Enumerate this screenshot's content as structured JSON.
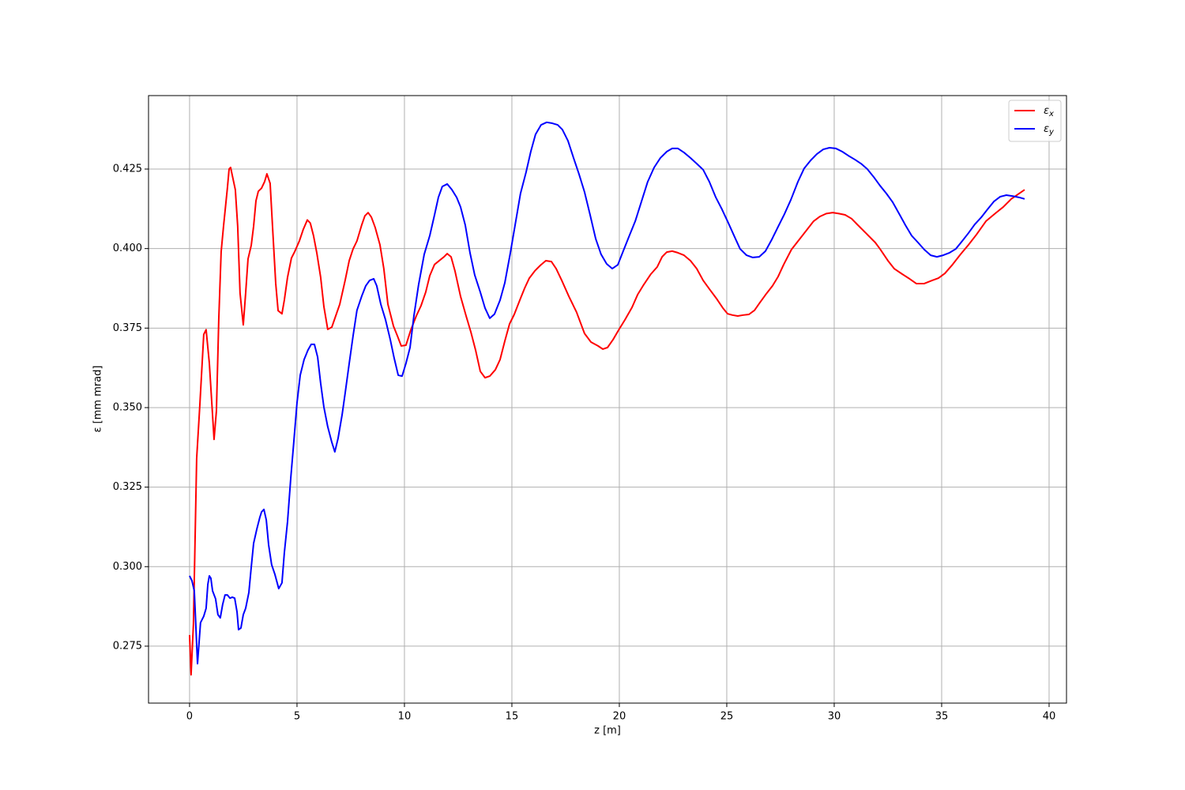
{
  "chart_data": {
    "type": "line",
    "x_label": "z [m]",
    "y_label": "ε [mm mrad]",
    "xlim": [
      -1.91,
      40.81
    ],
    "ylim": [
      0.2571,
      0.4481
    ],
    "xticks": [
      0,
      5,
      10,
      15,
      20,
      25,
      30,
      35,
      40
    ],
    "yticks": [
      0.275,
      {
        "value": 0.3,
        "label": "0.300"
      },
      0.325,
      {
        "value": 0.35,
        "label": "0.350"
      },
      0.375,
      {
        "value": 0.4,
        "label": "0.400"
      },
      0.425
    ],
    "grid": true,
    "legend": "upper right",
    "series": [
      {
        "name": "εx",
        "color": "#ff0000",
        "x": [
          0,
          0.07,
          0.18,
          0.33,
          0.48,
          0.66,
          0.77,
          0.92,
          1.14,
          1.25,
          1.36,
          1.47,
          1.58,
          1.76,
          1.84,
          1.91,
          2.02,
          2.13,
          2.24,
          2.35,
          2.5,
          2.61,
          2.72,
          2.87,
          2.98,
          3.09,
          3.2,
          3.35,
          3.49,
          3.6,
          3.75,
          3.86,
          4.01,
          4.12,
          4.3,
          4.41,
          4.56,
          4.74,
          4.89,
          5.11,
          5.29,
          5.48,
          5.62,
          5.77,
          5.92,
          6.1,
          6.25,
          6.43,
          6.62,
          6.8,
          6.99,
          7.24,
          7.43,
          7.61,
          7.79,
          8.01,
          8.16,
          8.31,
          8.46,
          8.64,
          8.86,
          9.04,
          9.23,
          9.49,
          9.67,
          9.85,
          10.07,
          10.29,
          10.55,
          10.77,
          10.99,
          11.18,
          11.4,
          11.62,
          11.84,
          11.99,
          12.17,
          12.35,
          12.61,
          12.87,
          13.09,
          13.31,
          13.53,
          13.75,
          13.97,
          14.23,
          14.45,
          14.67,
          14.89,
          15.11,
          15.37,
          15.59,
          15.81,
          16.07,
          16.32,
          16.58,
          16.84,
          17.06,
          17.32,
          17.65,
          18.01,
          18.38,
          18.68,
          19.01,
          19.23,
          19.45,
          19.71,
          19.96,
          20.26,
          20.59,
          20.85,
          21.14,
          21.47,
          21.76,
          21.99,
          22.21,
          22.46,
          22.72,
          23.01,
          23.31,
          23.6,
          23.9,
          24.19,
          24.52,
          24.82,
          25.04,
          25.26,
          25.51,
          25.77,
          26.03,
          26.29,
          26.54,
          26.84,
          27.13,
          27.39,
          27.65,
          28.01,
          28.38,
          28.75,
          29.04,
          29.34,
          29.63,
          29.93,
          30.22,
          30.51,
          30.81,
          31.1,
          31.47,
          31.91,
          32.13,
          32.5,
          32.79,
          33.16,
          33.46,
          33.82,
          34.19,
          34.56,
          34.85,
          35.15,
          35.51,
          35.88,
          36.25,
          36.62,
          37.06,
          37.5,
          37.87,
          38.24,
          38.6,
          38.86
        ],
        "values": [
          0.2785,
          0.266,
          0.282,
          0.334,
          0.351,
          0.373,
          0.3745,
          0.364,
          0.34,
          0.349,
          0.378,
          0.399,
          0.407,
          0.419,
          0.425,
          0.4255,
          0.422,
          0.4185,
          0.407,
          0.386,
          0.376,
          0.386,
          0.3967,
          0.401,
          0.407,
          0.415,
          0.418,
          0.419,
          0.421,
          0.4235,
          0.4205,
          0.407,
          0.389,
          0.3805,
          0.3795,
          0.3838,
          0.391,
          0.397,
          0.399,
          0.4024,
          0.406,
          0.409,
          0.408,
          0.404,
          0.3987,
          0.391,
          0.3818,
          0.3746,
          0.3753,
          0.3788,
          0.3825,
          0.39,
          0.3962,
          0.3999,
          0.4024,
          0.4074,
          0.4103,
          0.4113,
          0.4099,
          0.4066,
          0.4012,
          0.3937,
          0.3825,
          0.3756,
          0.3726,
          0.3694,
          0.3696,
          0.3743,
          0.3788,
          0.382,
          0.3863,
          0.3915,
          0.395,
          0.3962,
          0.3974,
          0.3984,
          0.3974,
          0.393,
          0.385,
          0.3788,
          0.3738,
          0.3681,
          0.3614,
          0.3594,
          0.3599,
          0.3619,
          0.3651,
          0.3709,
          0.3763,
          0.3793,
          0.3838,
          0.3875,
          0.3907,
          0.393,
          0.3947,
          0.3962,
          0.3959,
          0.3937,
          0.39,
          0.385,
          0.38,
          0.3733,
          0.3706,
          0.3694,
          0.3684,
          0.3689,
          0.3714,
          0.3743,
          0.3776,
          0.3815,
          0.3855,
          0.3887,
          0.392,
          0.3942,
          0.3974,
          0.3989,
          0.3992,
          0.3987,
          0.3979,
          0.3962,
          0.3937,
          0.39,
          0.3873,
          0.3843,
          0.3813,
          0.3795,
          0.3791,
          0.3788,
          0.3791,
          0.3793,
          0.3806,
          0.383,
          0.3858,
          0.3883,
          0.3912,
          0.395,
          0.3997,
          0.4029,
          0.4061,
          0.4086,
          0.4101,
          0.411,
          0.4113,
          0.411,
          0.4106,
          0.4094,
          0.4074,
          0.4049,
          0.4019,
          0.3999,
          0.3962,
          0.3937,
          0.392,
          0.3907,
          0.389,
          0.389,
          0.39,
          0.3907,
          0.3922,
          0.395,
          0.3982,
          0.4012,
          0.4044,
          0.4086,
          0.4111,
          0.4131,
          0.4156,
          0.4173,
          0.4185
        ]
      },
      {
        "name": "εy",
        "color": "#0000ff",
        "x": [
          0,
          0.11,
          0.22,
          0.37,
          0.51,
          0.66,
          0.77,
          0.85,
          0.92,
          0.99,
          1.07,
          1.21,
          1.32,
          1.43,
          1.54,
          1.65,
          1.76,
          1.88,
          1.99,
          2.1,
          2.21,
          2.28,
          2.39,
          2.5,
          2.61,
          2.76,
          2.87,
          2.98,
          3.13,
          3.27,
          3.35,
          3.46,
          3.57,
          3.68,
          3.82,
          3.97,
          4.15,
          4.3,
          4.41,
          4.56,
          4.71,
          4.85,
          5.0,
          5.15,
          5.33,
          5.51,
          5.66,
          5.81,
          5.96,
          6.1,
          6.25,
          6.43,
          6.62,
          6.76,
          6.91,
          7.1,
          7.24,
          7.43,
          7.61,
          7.79,
          8.01,
          8.2,
          8.38,
          8.57,
          8.71,
          8.9,
          9.12,
          9.34,
          9.52,
          9.71,
          9.89,
          10.07,
          10.26,
          10.44,
          10.66,
          10.92,
          11.18,
          11.4,
          11.58,
          11.76,
          11.99,
          12.21,
          12.43,
          12.61,
          12.83,
          13.05,
          13.27,
          13.53,
          13.75,
          13.97,
          14.19,
          14.45,
          14.67,
          14.93,
          15.15,
          15.4,
          15.66,
          15.88,
          16.1,
          16.36,
          16.62,
          16.88,
          17.13,
          17.35,
          17.61,
          17.87,
          18.12,
          18.38,
          18.64,
          18.9,
          19.15,
          19.41,
          19.67,
          19.93,
          20.18,
          20.44,
          20.74,
          21.03,
          21.32,
          21.62,
          21.91,
          22.21,
          22.46,
          22.72,
          23.01,
          23.31,
          23.6,
          23.9,
          24.19,
          24.49,
          24.78,
          25.07,
          25.37,
          25.62,
          25.92,
          26.21,
          26.51,
          26.8,
          27.1,
          27.39,
          27.68,
          27.98,
          28.31,
          28.6,
          28.9,
          29.19,
          29.49,
          29.78,
          30.07,
          30.37,
          30.66,
          30.96,
          31.25,
          31.54,
          31.84,
          32.13,
          32.43,
          32.72,
          33.01,
          33.31,
          33.6,
          33.9,
          34.19,
          34.49,
          34.78,
          35.07,
          35.37,
          35.66,
          35.96,
          36.25,
          36.54,
          36.84,
          37.13,
          37.43,
          37.72,
          38.01,
          38.31,
          38.6,
          38.86
        ],
        "values": [
          0.2971,
          0.2956,
          0.2924,
          0.2695,
          0.2824,
          0.2844,
          0.2869,
          0.2944,
          0.2971,
          0.2964,
          0.2924,
          0.2899,
          0.2849,
          0.2839,
          0.2881,
          0.2911,
          0.2911,
          0.2901,
          0.2904,
          0.2901,
          0.2857,
          0.2802,
          0.2807,
          0.2849,
          0.2869,
          0.2919,
          0.2998,
          0.3073,
          0.3118,
          0.3155,
          0.3172,
          0.318,
          0.3147,
          0.3068,
          0.3006,
          0.2976,
          0.2931,
          0.2949,
          0.3043,
          0.3142,
          0.3279,
          0.3391,
          0.3515,
          0.3602,
          0.3651,
          0.3681,
          0.3699,
          0.3699,
          0.3659,
          0.3577,
          0.3502,
          0.344,
          0.3391,
          0.3361,
          0.3403,
          0.3478,
          0.3545,
          0.3639,
          0.3726,
          0.3806,
          0.385,
          0.3883,
          0.39,
          0.3905,
          0.3883,
          0.3825,
          0.3776,
          0.3714,
          0.3656,
          0.3602,
          0.3599,
          0.3639,
          0.3689,
          0.3788,
          0.3887,
          0.3982,
          0.4041,
          0.4106,
          0.4161,
          0.4195,
          0.4203,
          0.4185,
          0.4161,
          0.4131,
          0.4074,
          0.3987,
          0.3917,
          0.3863,
          0.3813,
          0.3781,
          0.3794,
          0.3838,
          0.3892,
          0.3987,
          0.4074,
          0.4173,
          0.424,
          0.4305,
          0.4359,
          0.4389,
          0.4397,
          0.4394,
          0.4389,
          0.4374,
          0.4339,
          0.4285,
          0.4235,
          0.4178,
          0.4106,
          0.4031,
          0.3982,
          0.3952,
          0.3937,
          0.3949,
          0.3992,
          0.4036,
          0.4086,
          0.4148,
          0.421,
          0.4255,
          0.4285,
          0.4305,
          0.4315,
          0.4315,
          0.4302,
          0.4285,
          0.4267,
          0.4248,
          0.421,
          0.4161,
          0.4123,
          0.4081,
          0.4036,
          0.3999,
          0.3979,
          0.3972,
          0.3974,
          0.3992,
          0.4029,
          0.4069,
          0.4108,
          0.4153,
          0.421,
          0.4252,
          0.4277,
          0.4297,
          0.4312,
          0.4317,
          0.4315,
          0.4305,
          0.4292,
          0.428,
          0.4267,
          0.425,
          0.4225,
          0.4198,
          0.4173,
          0.4146,
          0.4111,
          0.4074,
          0.4041,
          0.4019,
          0.3997,
          0.3979,
          0.3974,
          0.3979,
          0.3987,
          0.3999,
          0.4024,
          0.4049,
          0.4076,
          0.4098,
          0.4123,
          0.4148,
          0.4163,
          0.4168,
          0.4165,
          0.4161,
          0.4156
        ]
      }
    ]
  }
}
